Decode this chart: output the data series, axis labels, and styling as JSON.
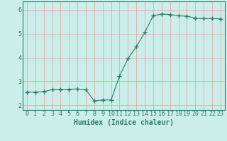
{
  "x": [
    0,
    1,
    2,
    3,
    4,
    5,
    6,
    7,
    8,
    9,
    10,
    11,
    12,
    13,
    14,
    15,
    16,
    17,
    18,
    19,
    20,
    21,
    22,
    23
  ],
  "y": [
    2.55,
    2.55,
    2.57,
    2.65,
    2.67,
    2.67,
    2.68,
    2.65,
    2.18,
    2.22,
    2.22,
    3.22,
    3.95,
    4.45,
    5.05,
    5.75,
    5.82,
    5.8,
    5.75,
    5.73,
    5.65,
    5.63,
    5.63,
    5.62
  ],
  "line_color": "#2d7a6a",
  "marker": "+",
  "marker_size": 4,
  "bg_color": "#cceee8",
  "grid_color": "#ddaaaa",
  "xlabel": "Humidex (Indice chaleur)",
  "xlim": [
    -0.5,
    23.5
  ],
  "ylim": [
    1.8,
    6.35
  ],
  "yticks": [
    2,
    3,
    4,
    5,
    6
  ],
  "xticks": [
    0,
    1,
    2,
    3,
    4,
    5,
    6,
    7,
    8,
    9,
    10,
    11,
    12,
    13,
    14,
    15,
    16,
    17,
    18,
    19,
    20,
    21,
    22,
    23
  ],
  "tick_label_color": "#2d7a6a",
  "axis_color": "#2d7a6a",
  "tick_fontsize": 6,
  "xlabel_fontsize": 7
}
